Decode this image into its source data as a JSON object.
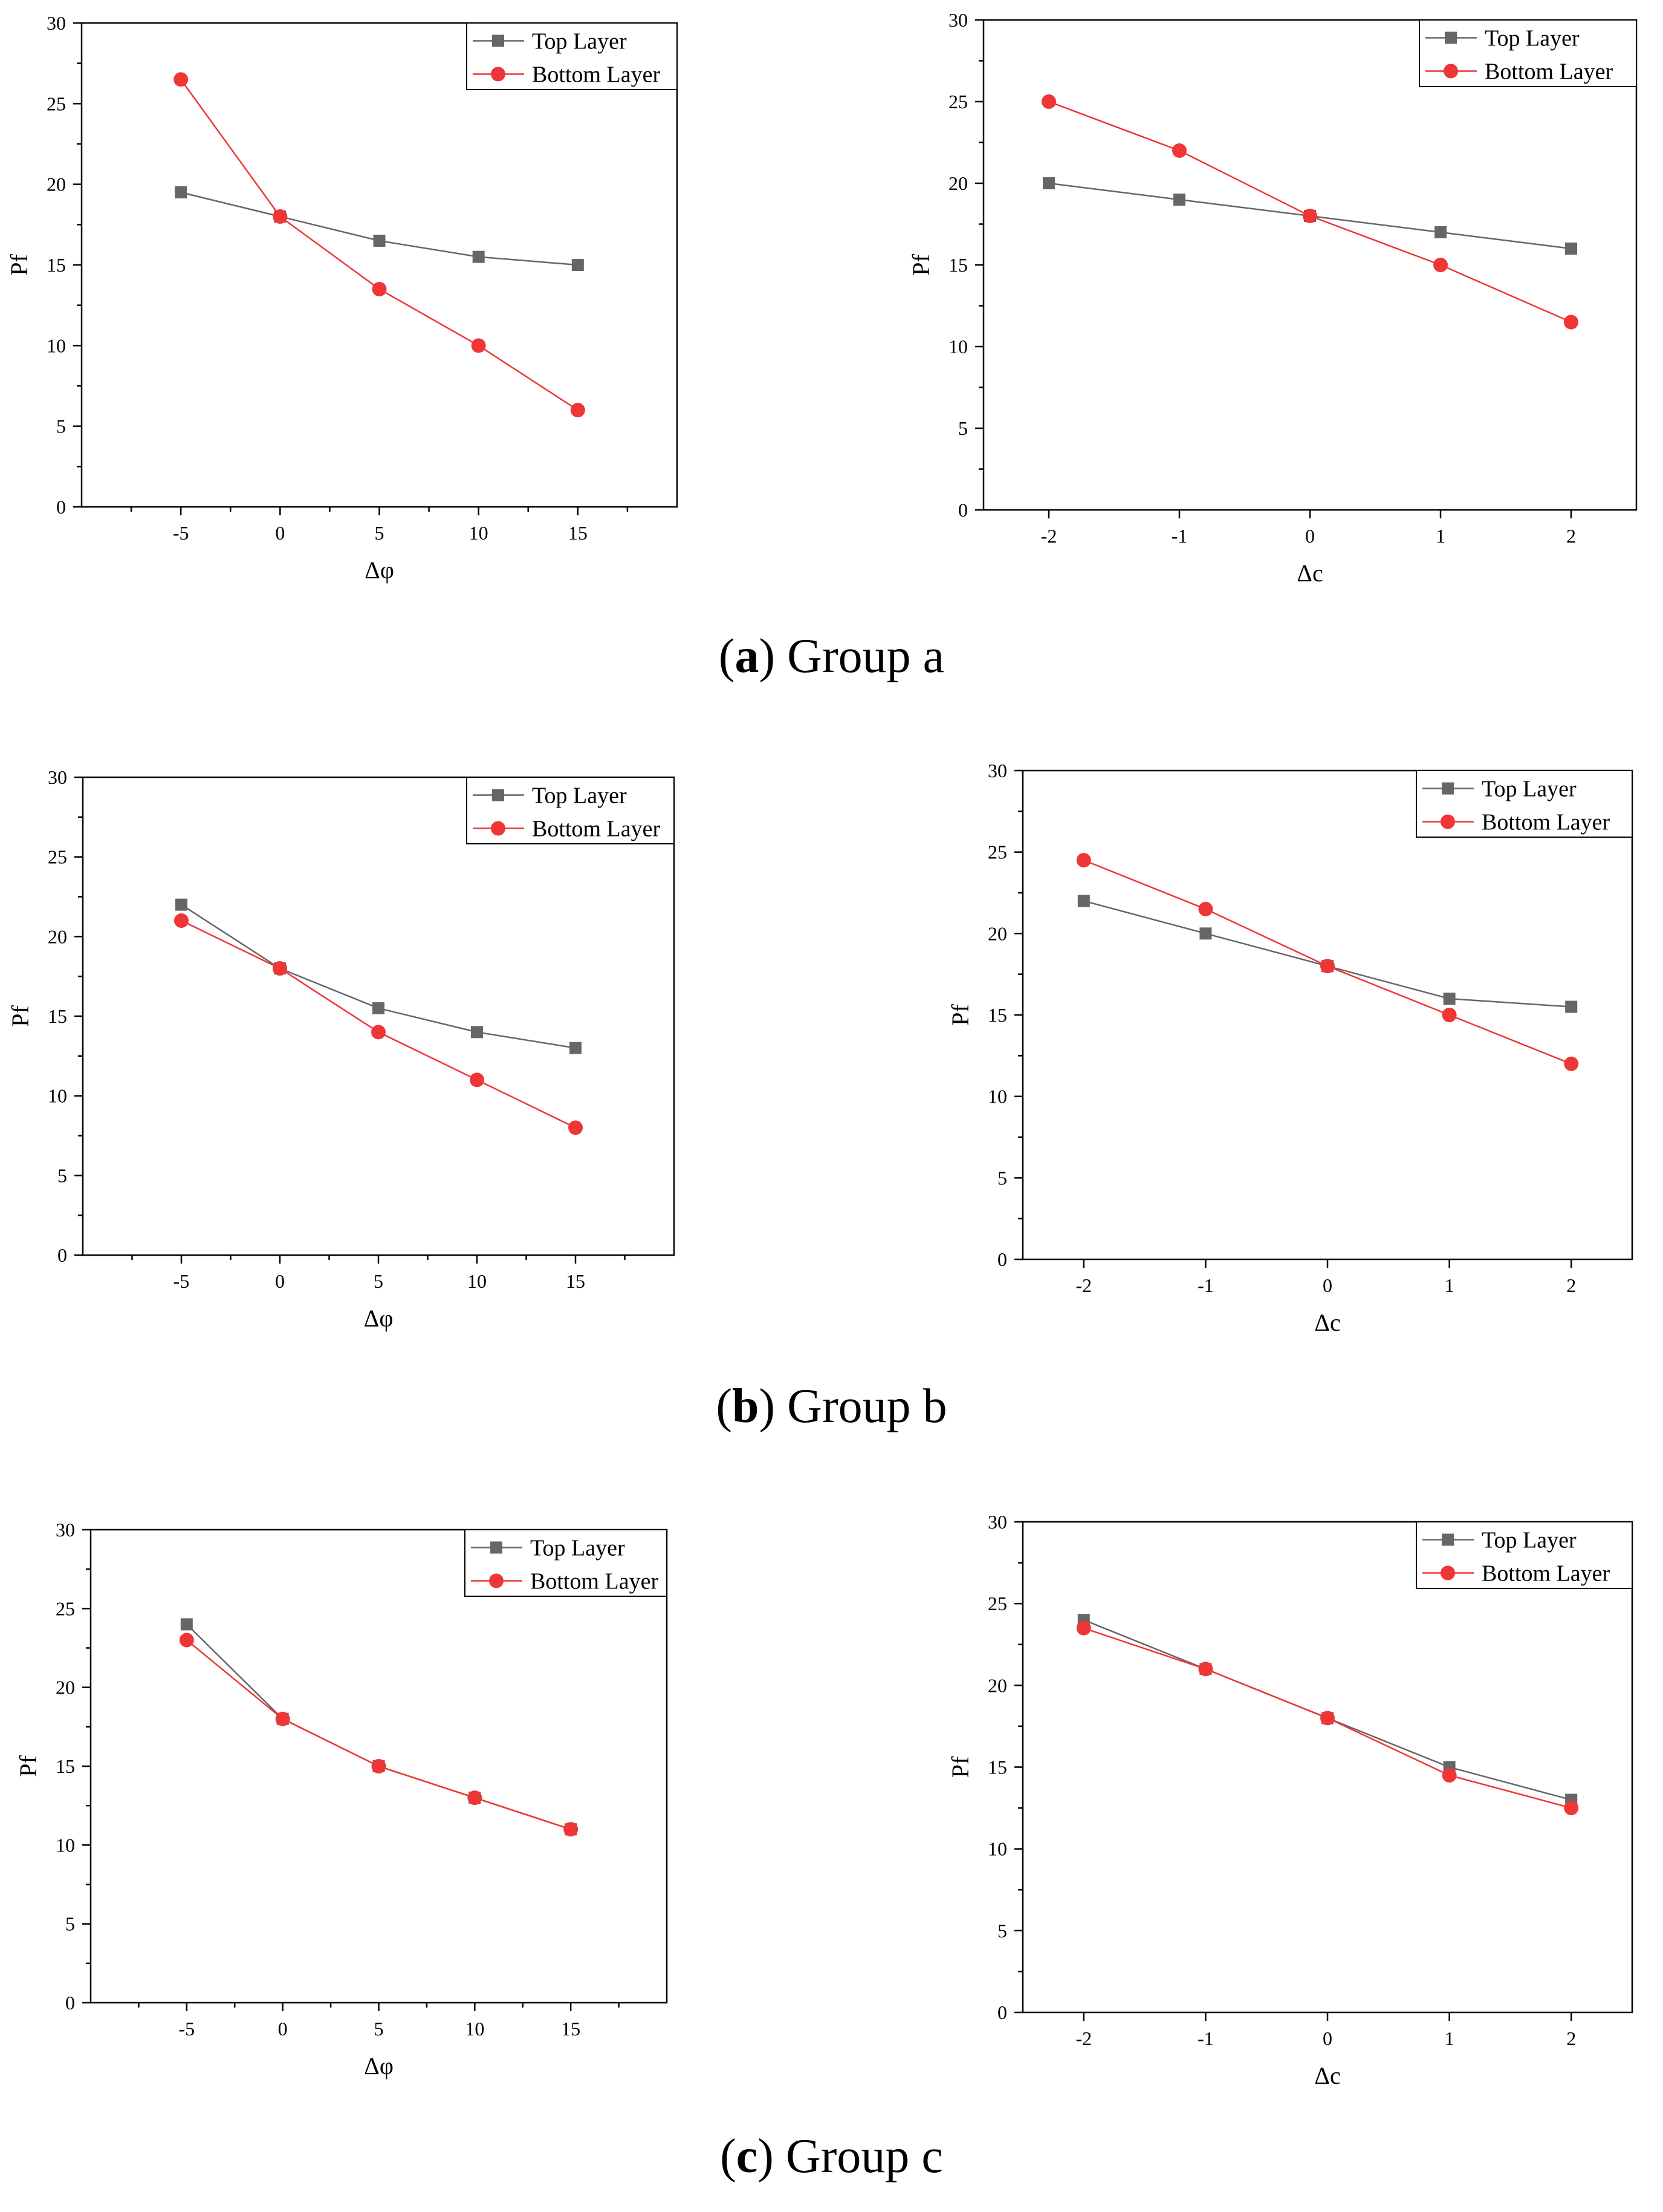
{
  "figure": {
    "colors": {
      "top": "#666666",
      "bottom": "#ef3636",
      "axis": "#000000"
    },
    "legend_labels": [
      "Top Layer",
      "Bottom Layer"
    ],
    "captions": [
      {
        "letter": "a",
        "open": "(",
        "close": ")",
        "text": "Group a"
      },
      {
        "letter": "b",
        "open": "(",
        "close": ")",
        "text": "Group b"
      },
      {
        "letter": "c",
        "open": "(",
        "close": ")",
        "text": "Group c"
      }
    ]
  },
  "chart_data": [
    {
      "type": "line",
      "id": "a-phi",
      "group": "a",
      "xlabel": "Δφ",
      "ylabel": "Pf",
      "x": [
        -5,
        0,
        5,
        10,
        15
      ],
      "xlim": [
        -10,
        20
      ],
      "ylim": [
        0,
        30
      ],
      "yticks": [
        0,
        5,
        10,
        15,
        20,
        25,
        30
      ],
      "series": [
        {
          "name": "Top Layer",
          "values": [
            19.5,
            18,
            16.5,
            15.5,
            15
          ]
        },
        {
          "name": "Bottom Layer",
          "values": [
            26.5,
            18,
            13.5,
            10,
            6
          ]
        }
      ],
      "legend": "top-right"
    },
    {
      "type": "line",
      "id": "a-c",
      "group": "a",
      "xlabel": "Δc",
      "ylabel": "Pf",
      "x": [
        -2,
        -1,
        0,
        1,
        2
      ],
      "xlim": [
        -2.5,
        2.5
      ],
      "ylim": [
        0,
        30
      ],
      "yticks": [
        0,
        5,
        10,
        15,
        20,
        25,
        30
      ],
      "series": [
        {
          "name": "Top Layer",
          "values": [
            20,
            19,
            18,
            17,
            16
          ]
        },
        {
          "name": "Bottom Layer",
          "values": [
            25,
            22,
            18,
            15,
            11.5
          ]
        }
      ],
      "legend": "top-right"
    },
    {
      "type": "line",
      "id": "b-phi",
      "group": "b",
      "xlabel": "Δφ",
      "ylabel": "Pf",
      "x": [
        -5,
        0,
        5,
        10,
        15
      ],
      "xlim": [
        -10,
        20
      ],
      "ylim": [
        0,
        30
      ],
      "yticks": [
        0,
        5,
        10,
        15,
        20,
        25,
        30
      ],
      "series": [
        {
          "name": "Top Layer",
          "values": [
            22,
            18,
            15.5,
            14,
            13
          ]
        },
        {
          "name": "Bottom Layer",
          "values": [
            21,
            18,
            14,
            11,
            8
          ]
        }
      ],
      "legend": "top-right"
    },
    {
      "type": "line",
      "id": "b-c",
      "group": "b",
      "xlabel": "Δc",
      "ylabel": "Pf",
      "x": [
        -2,
        -1,
        0,
        1,
        2
      ],
      "xlim": [
        -2.5,
        2.5
      ],
      "ylim": [
        0,
        30
      ],
      "yticks": [
        0,
        5,
        10,
        15,
        20,
        25,
        30
      ],
      "series": [
        {
          "name": "Top Layer",
          "values": [
            22,
            20,
            18,
            16,
            15.5
          ]
        },
        {
          "name": "Bottom Layer",
          "values": [
            24.5,
            21.5,
            18,
            15,
            12
          ]
        }
      ],
      "legend": "top-right"
    },
    {
      "type": "line",
      "id": "c-phi",
      "group": "c",
      "xlabel": "Δφ",
      "ylabel": "Pf",
      "x": [
        -5,
        0,
        5,
        10,
        15
      ],
      "xlim": [
        -10,
        20
      ],
      "ylim": [
        0,
        30
      ],
      "yticks": [
        0,
        5,
        10,
        15,
        20,
        25,
        30
      ],
      "series": [
        {
          "name": "Top Layer",
          "values": [
            24,
            18,
            15,
            13,
            11
          ]
        },
        {
          "name": "Bottom Layer",
          "values": [
            23,
            18,
            15,
            13,
            11
          ]
        }
      ],
      "legend": "top-right"
    },
    {
      "type": "line",
      "id": "c-c",
      "group": "c",
      "xlabel": "Δc",
      "ylabel": "Pf",
      "x": [
        -2,
        -1,
        0,
        1,
        2
      ],
      "xlim": [
        -2.5,
        2.5
      ],
      "ylim": [
        0,
        30
      ],
      "yticks": [
        0,
        5,
        10,
        15,
        20,
        25,
        30
      ],
      "series": [
        {
          "name": "Top Layer",
          "values": [
            24,
            21,
            18,
            15,
            13
          ]
        },
        {
          "name": "Bottom Layer",
          "values": [
            23.5,
            21,
            18,
            14.5,
            12.5
          ]
        }
      ],
      "legend": "top-right"
    }
  ]
}
